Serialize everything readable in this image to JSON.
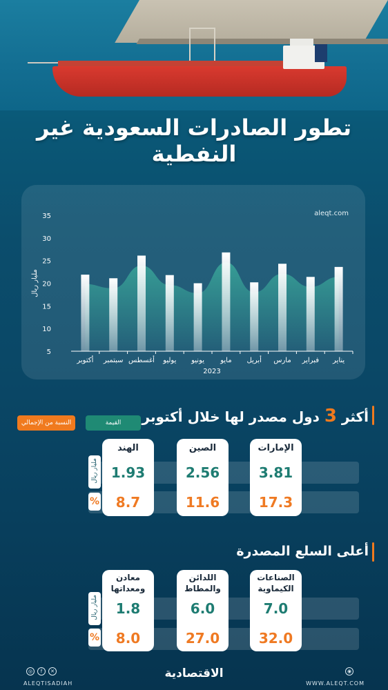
{
  "title": "تطور الصادرات السعودية غير النفطية",
  "chart_data": {
    "type": "bar",
    "categories": [
      "يناير",
      "فبراير",
      "مارس",
      "أبريل",
      "مايو",
      "يونيو",
      "يوليو",
      "أغسطس",
      "سبتمبر",
      "أكتوبر"
    ],
    "values": [
      23.6,
      21.4,
      24.3,
      20.2,
      26.8,
      20.0,
      21.8,
      26.1,
      21.1,
      21.9
    ],
    "year_label": "2023",
    "ylabel": "مليار ريال",
    "ylim": [
      5,
      35
    ],
    "yticks": [
      5,
      10,
      15,
      20,
      25,
      30,
      35
    ],
    "source": "aleqt.com",
    "bar_color": "#ffffff",
    "area_color": "#3aa89a"
  },
  "section1": {
    "title_pre": "أكثر",
    "title_num": "3",
    "title_post": "دول مصدر لها خلال أكتوبر",
    "legend_value": "القيمة",
    "legend_share": "النسبة من الإجمالي",
    "unit_label": "مليار ريال",
    "pct_symbol": "%",
    "countries": [
      {
        "name": "الإمارات",
        "value": "3.81",
        "share": "17.3"
      },
      {
        "name": "الصين",
        "value": "2.56",
        "share": "11.6"
      },
      {
        "name": "الهند",
        "value": "1.93",
        "share": "8.7"
      }
    ]
  },
  "section2": {
    "title": "أعلى السلع المصدرة",
    "unit_label": "مليار ريال",
    "pct_symbol": "%",
    "goods": [
      {
        "name_line1": "الصناعات",
        "name_line2": "الكيماوية",
        "value": "7.0",
        "share": "32.0"
      },
      {
        "name_line1": "اللدائن",
        "name_line2": "والمطاط",
        "value": "6.0",
        "share": "27.0"
      },
      {
        "name_line1": "معادن",
        "name_line2": "ومعداتها",
        "value": "1.8",
        "share": "8.0"
      }
    ]
  },
  "footer": {
    "handle": "ALEQTISADIAH",
    "logo": "الاقتصادية",
    "website": "WWW.ALEQT.COM"
  },
  "colors": {
    "accent_orange": "#f07a1e",
    "teal": "#1e7c72",
    "legend_teal": "#1f8a74"
  }
}
